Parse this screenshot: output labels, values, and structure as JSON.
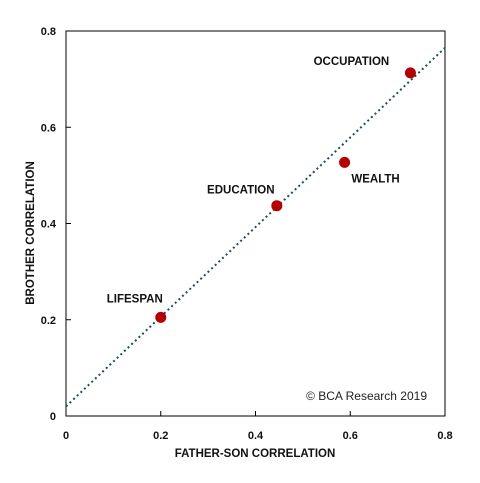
{
  "chart_data": {
    "type": "scatter",
    "xlabel": "FATHER-SON CORRELATION",
    "ylabel": "BROTHER CORRELATION",
    "xlim": [
      0,
      0.8
    ],
    "ylim": [
      0,
      0.8
    ],
    "xticks": [
      "0",
      "0.2",
      "0.4",
      "0.6",
      "0.8"
    ],
    "yticks": [
      "0",
      "0.2",
      "0.4",
      "0.6",
      "0.8"
    ],
    "grid": false,
    "points": [
      {
        "label": "LIFESPAN",
        "x": 0.2,
        "y": 0.205
      },
      {
        "label": "EDUCATION",
        "x": 0.445,
        "y": 0.437
      },
      {
        "label": "WEALTH",
        "x": 0.588,
        "y": 0.527
      },
      {
        "label": "OCCUPATION",
        "x": 0.727,
        "y": 0.713
      }
    ],
    "trendline": {
      "style": "dotted",
      "from": [
        0,
        0.02
      ],
      "to": [
        0.8,
        0.765
      ]
    },
    "point_color": "#b40000",
    "trendline_color": "#1f4e5f",
    "credit": "© BCA Research 2019"
  }
}
